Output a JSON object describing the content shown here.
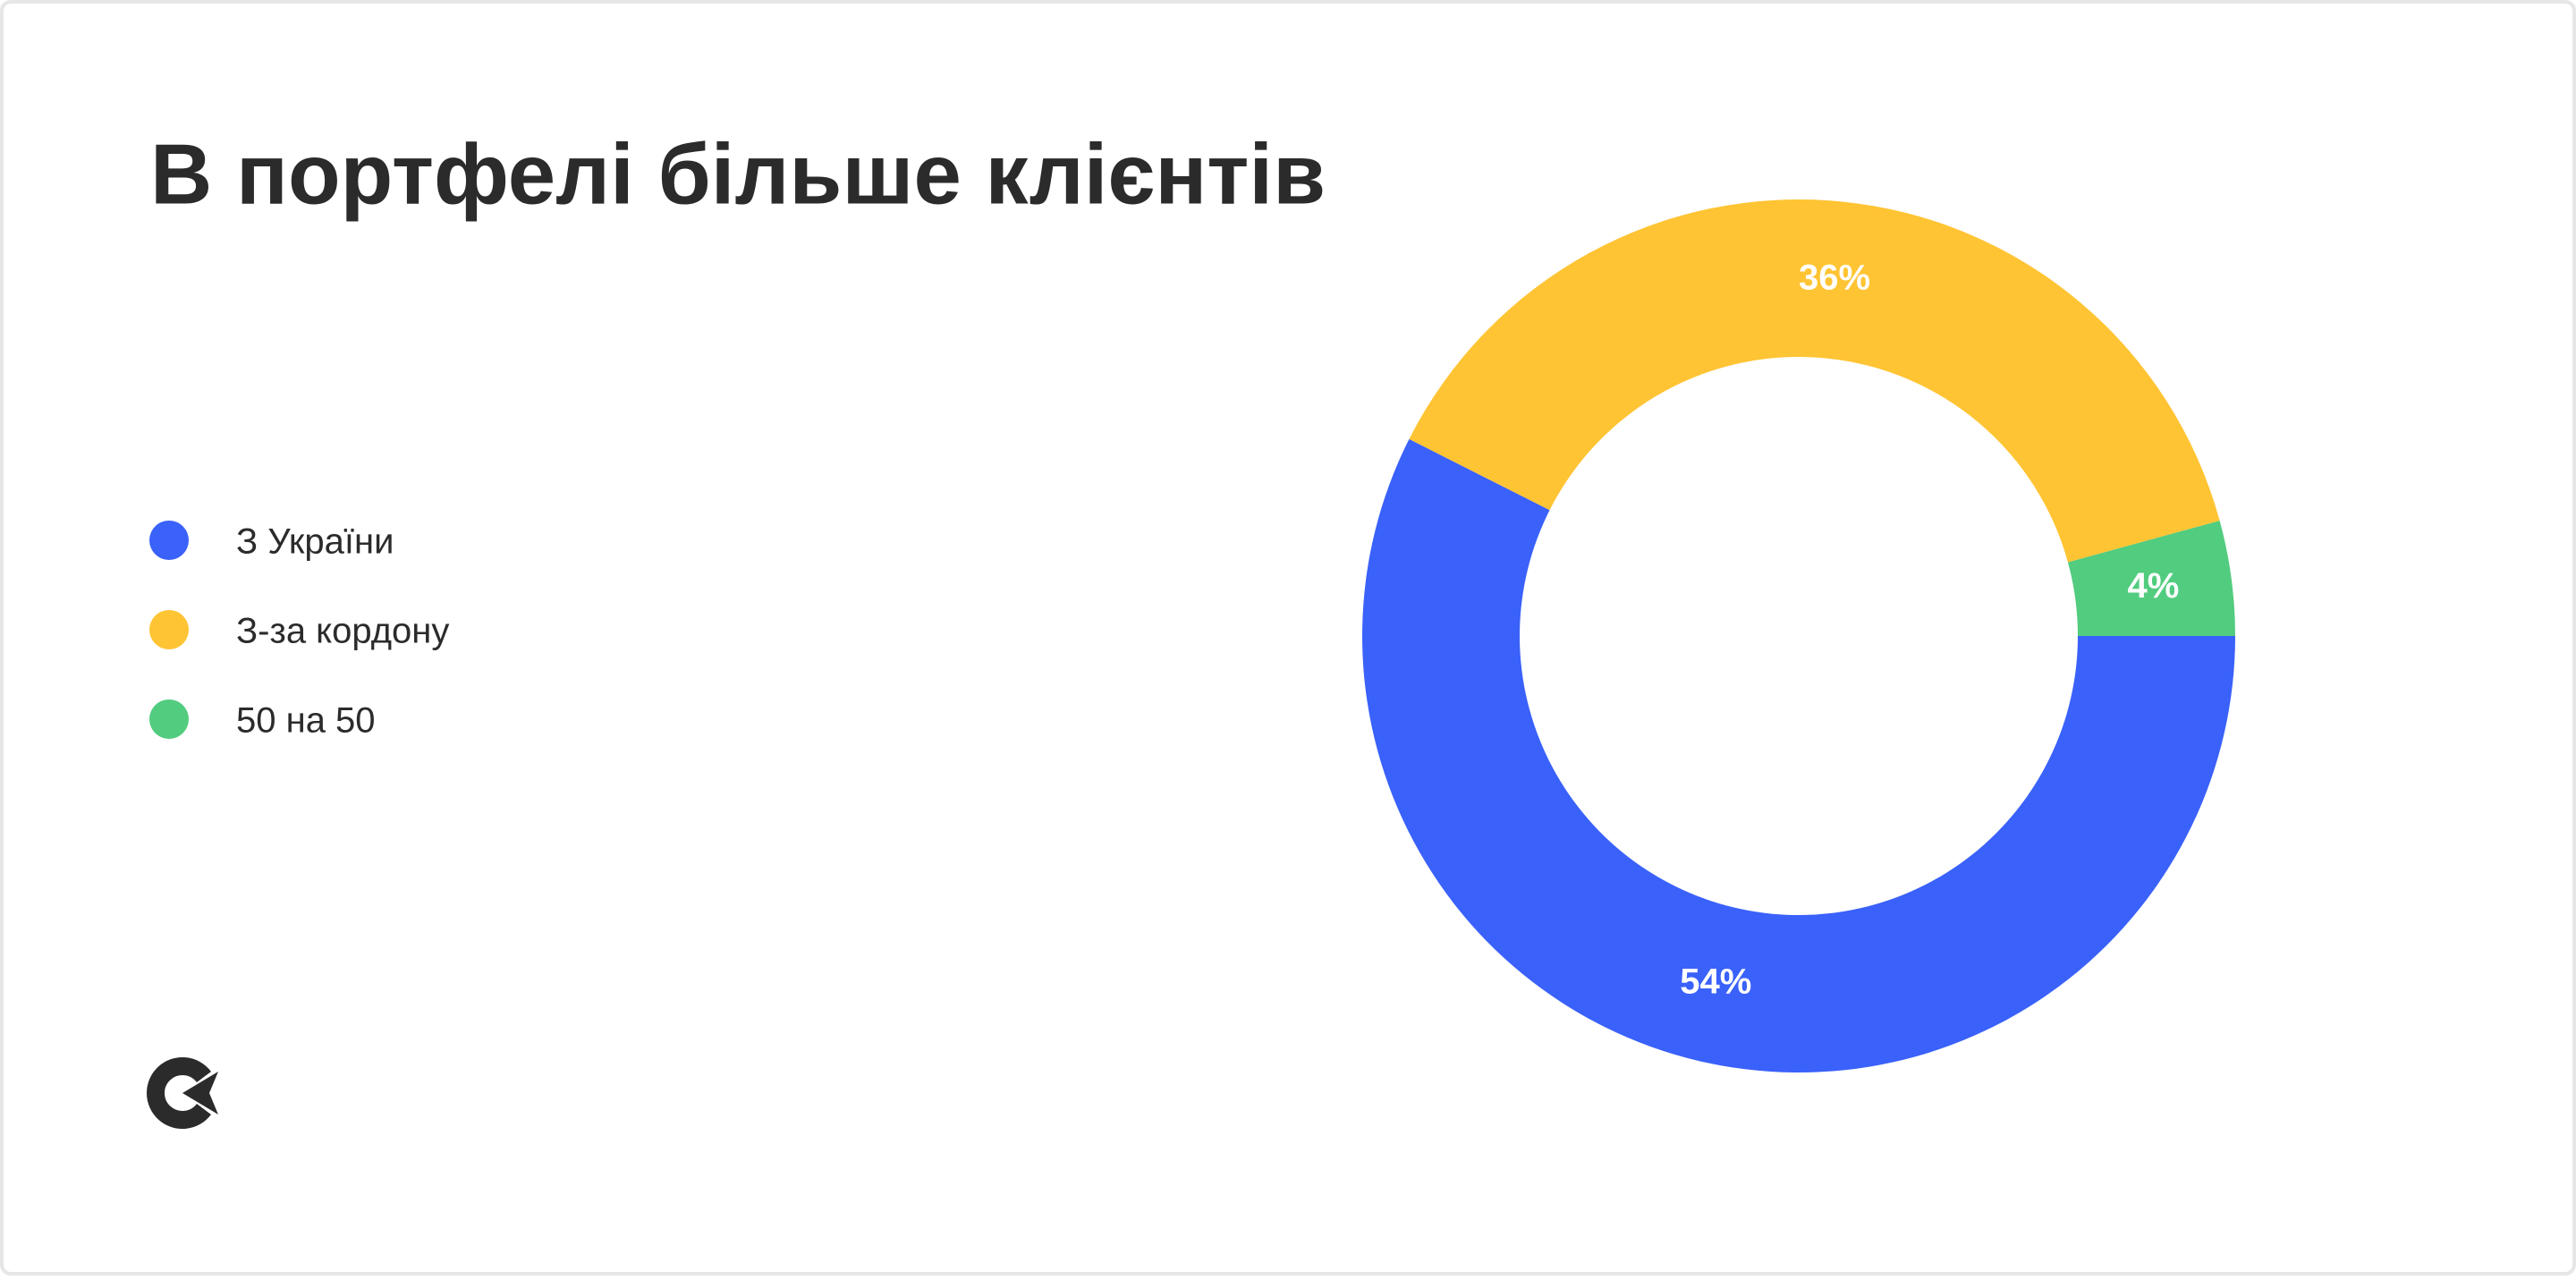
{
  "chart_data": {
    "type": "donut",
    "title": "В портфелі більше клієнтів",
    "categories": [
      "З України",
      "З-за кордону",
      "50 на 50"
    ],
    "values": [
      54,
      36,
      4
    ],
    "value_labels": [
      "54%",
      "36%",
      "4%"
    ],
    "colors": [
      "#3a61fa",
      "#ffc433",
      "#52cc7f"
    ],
    "legend": "left"
  }
}
